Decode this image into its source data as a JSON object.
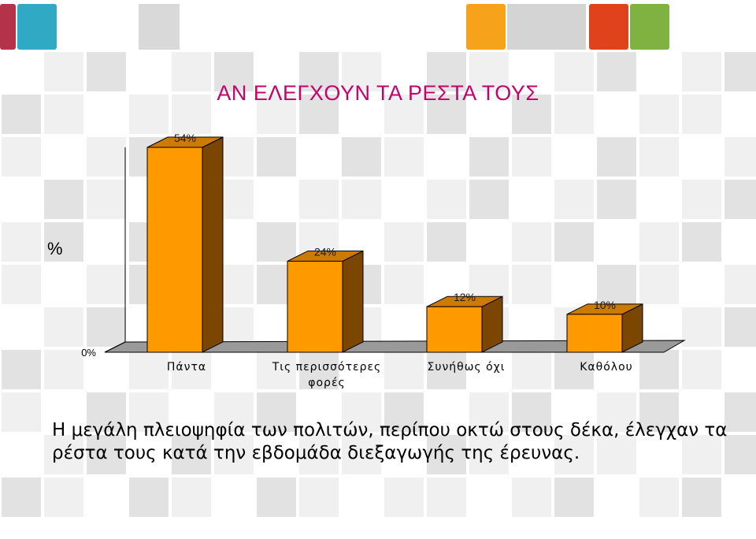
{
  "slide": {
    "caption": "Η μεγάλη πλειοψηφία των πολιτών, περίπου οκτώ στους δέκα, έλεγχαν τα ρέστα τους κατά την εβδομάδα διεξαγωγής της έρευνας."
  },
  "colors": {
    "title": "#c4006a",
    "bar_front": "#ff9900",
    "bar_side": "#7a4600",
    "bar_top": "#cc7a00",
    "floor": "#9a9a9a",
    "tile_light": "#f0f0f0",
    "tile_mid": "#e2e2e2",
    "banner_orange": "#f7a21b",
    "banner_red": "#e0431c",
    "banner_green": "#7fb241",
    "banner_teal": "#2fa9c4",
    "banner_maroon": "#b5334a"
  },
  "chart_data": {
    "type": "bar",
    "style": "3d",
    "title": "ΑΝ ΕΛΕΓΧΟΥΝ ΤΑ ΡΕΣΤΑ ΤΟΥΣ",
    "ylabel": "%",
    "xlabel": "",
    "categories": [
      "Πάντα",
      "Τις περισσότερες φορές",
      "Συνήθως όχι",
      "Καθόλου"
    ],
    "category_lines": [
      [
        "Πάντα"
      ],
      [
        "Τις περισσότερες",
        "φορές"
      ],
      [
        "Συνήθως όχι"
      ],
      [
        "Καθόλου"
      ]
    ],
    "values": [
      54,
      24,
      12,
      10
    ],
    "data_labels": [
      "54%",
      "24%",
      "12%",
      "10%"
    ],
    "y_tick_labels": [
      "0%"
    ],
    "ylim": [
      0,
      54
    ],
    "grid": false,
    "legend": "none"
  }
}
